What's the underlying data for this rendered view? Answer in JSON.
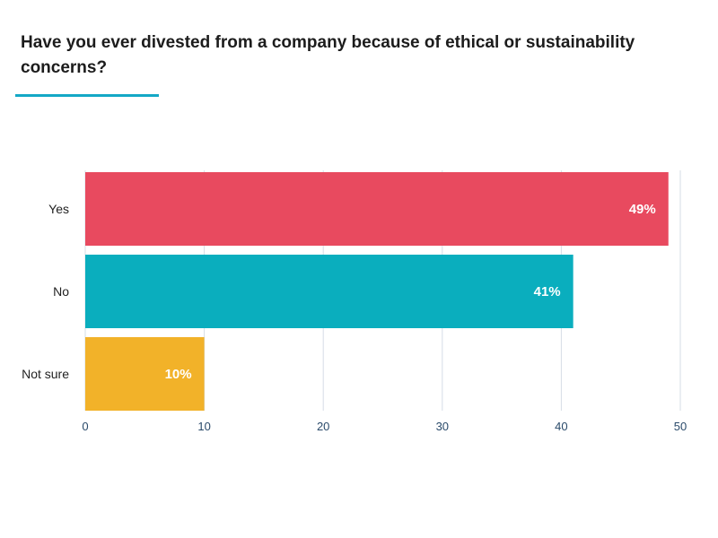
{
  "colors": {
    "accent_underline": "#14a8c6",
    "gridline": "#d6dde6"
  },
  "chart_data": {
    "type": "bar",
    "orientation": "horizontal",
    "title": "Have you ever divested from a company because of ethical or sustainability concerns?",
    "categories": [
      "Yes",
      "No",
      "Not sure"
    ],
    "values": [
      49,
      41,
      10
    ],
    "value_labels": [
      "49%",
      "41%",
      "10%"
    ],
    "colors": [
      "#e84a5f",
      "#0aaebe",
      "#f2b229"
    ],
    "xticks": [
      "0",
      "10",
      "20",
      "30",
      "40",
      "50"
    ],
    "xlim": [
      0,
      50
    ],
    "xlabel": "",
    "ylabel": "",
    "grid": true,
    "legend": "none"
  }
}
